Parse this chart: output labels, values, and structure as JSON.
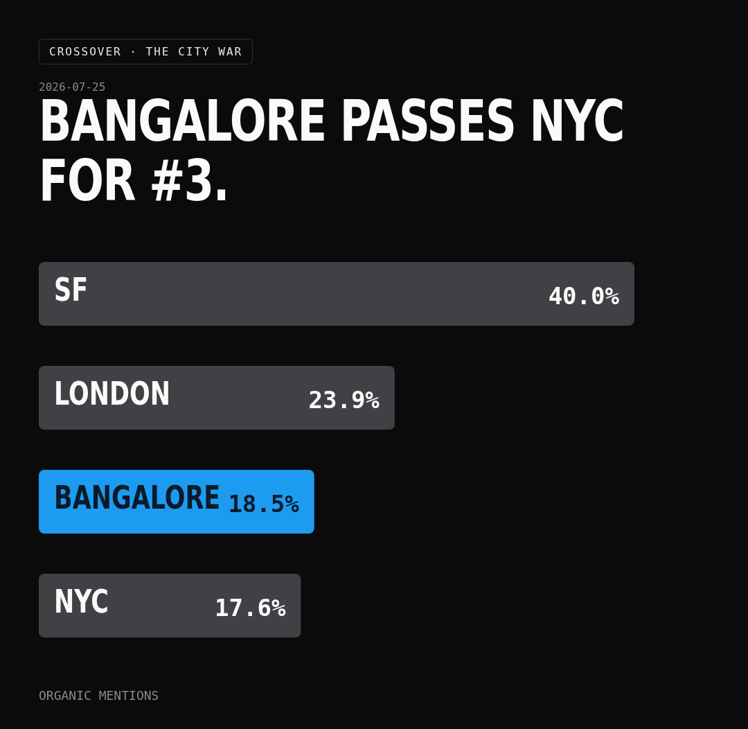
{
  "chart_data": {
    "type": "bar",
    "orientation": "horizontal",
    "subtitle": "CROSSOVER · THE CITY WAR",
    "title": "BANGALORE PASSES NYC FOR #3.",
    "categories": [
      "SF",
      "LONDON",
      "BANGALORE",
      "NYC"
    ],
    "values": [
      40.0,
      23.9,
      18.5,
      17.6
    ],
    "colors": [
      "#414145",
      "#414145",
      "#1d9bf0",
      "#414145"
    ],
    "value_labels": [
      "40.0%",
      "23.9%",
      "18.5%",
      "17.6%"
    ],
    "annotations": [
      "2026-07-25",
      "ORGANIC MENTIONS"
    ]
  }
}
